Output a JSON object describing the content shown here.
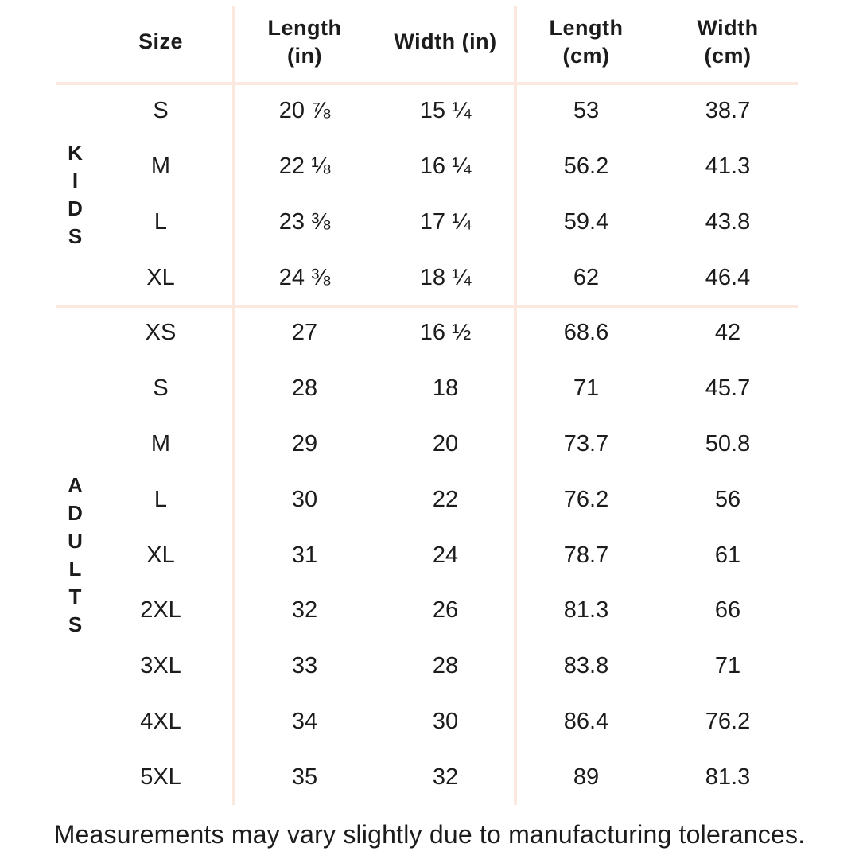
{
  "colors": {
    "background": "#ffffff",
    "divider": "#fbe9e0",
    "text": "#1d1c1c"
  },
  "table": {
    "header_lines": [
      [
        "Size"
      ],
      [
        "Length",
        "(in)"
      ],
      [
        "Width (in)"
      ],
      [
        "Length",
        "(cm)"
      ],
      [
        "Width",
        "(cm)"
      ]
    ]
  },
  "chart_data": {
    "type": "table",
    "columns": [
      "Size",
      "Length (in)",
      "Width (in)",
      "Length (cm)",
      "Width (cm)"
    ],
    "row_groups": [
      {
        "group": "KIDS",
        "rows": [
          [
            "S",
            "20 ⅞",
            "15 ¼",
            "53",
            "38.7"
          ],
          [
            "M",
            "22 ⅛",
            "16 ¼",
            "56.2",
            "41.3"
          ],
          [
            "L",
            "23 ⅜",
            "17 ¼",
            "59.4",
            "43.8"
          ],
          [
            "XL",
            "24 ⅜",
            "18 ¼",
            "62",
            "46.4"
          ]
        ]
      },
      {
        "group": "ADULTS",
        "rows": [
          [
            "XS",
            "27",
            "16 ½",
            "68.6",
            "42"
          ],
          [
            "S",
            "28",
            "18",
            "71",
            "45.7"
          ],
          [
            "M",
            "29",
            "20",
            "73.7",
            "50.8"
          ],
          [
            "L",
            "30",
            "22",
            "76.2",
            "56"
          ],
          [
            "XL",
            "31",
            "24",
            "78.7",
            "61"
          ],
          [
            "2XL",
            "32",
            "26",
            "81.3",
            "66"
          ],
          [
            "3XL",
            "33",
            "28",
            "83.8",
            "71"
          ],
          [
            "4XL",
            "34",
            "30",
            "86.4",
            "76.2"
          ],
          [
            "5XL",
            "35",
            "32",
            "89",
            "81.3"
          ]
        ]
      }
    ],
    "footnote": "Measurements may vary slightly due to manufacturing tolerances."
  }
}
